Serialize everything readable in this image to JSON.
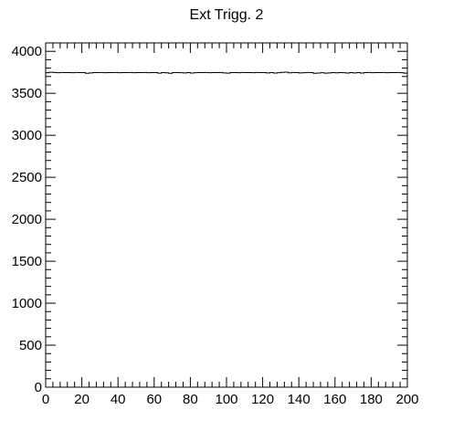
{
  "chart_data": {
    "type": "line",
    "title": "Ext Trigg. 2",
    "xlabel": "",
    "ylabel": "",
    "xlim": [
      0,
      200
    ],
    "ylim": [
      0,
      4100
    ],
    "x_ticks": [
      0,
      20,
      40,
      60,
      80,
      100,
      120,
      140,
      160,
      180,
      200
    ],
    "x_tick_labels": [
      "0",
      "20",
      "40",
      "60",
      "80",
      "100",
      "120",
      "140",
      "160",
      "180",
      "200"
    ],
    "y_ticks": [
      0,
      500,
      1000,
      1500,
      2000,
      2500,
      3000,
      3500,
      4000
    ],
    "y_tick_labels": [
      "0",
      "500",
      "1000",
      "1500",
      "2000",
      "2500",
      "3000",
      "3500",
      "4000"
    ],
    "grid": false,
    "legend": "none",
    "colors": {
      "line": "#000000",
      "axes": "#000000",
      "background": "#ffffff"
    },
    "series": [
      {
        "x": [
          0,
          2,
          4,
          6,
          8,
          10,
          12,
          14,
          16,
          18,
          20,
          22,
          24,
          26,
          28,
          30,
          32,
          34,
          36,
          38,
          40,
          42,
          44,
          46,
          48,
          50,
          52,
          54,
          56,
          58,
          60,
          62,
          64,
          66,
          68,
          70,
          72,
          74,
          76,
          78,
          80,
          82,
          84,
          86,
          88,
          90,
          92,
          94,
          96,
          98,
          100,
          102,
          104,
          106,
          108,
          110,
          112,
          114,
          116,
          118,
          120,
          122,
          124,
          126,
          128,
          130,
          132,
          134,
          136,
          138,
          140,
          142,
          144,
          146,
          148,
          150,
          152,
          154,
          156,
          158,
          160,
          162,
          164,
          166,
          168,
          170,
          172,
          174,
          176,
          178,
          180,
          182,
          184,
          186,
          188,
          190,
          192,
          194,
          196,
          198
        ],
        "values": [
          3745,
          3750,
          3748,
          3745,
          3748,
          3746,
          3747,
          3745,
          3748,
          3746,
          3747,
          3738,
          3743,
          3747,
          3746,
          3748,
          3745,
          3747,
          3746,
          3748,
          3745,
          3747,
          3746,
          3748,
          3745,
          3747,
          3746,
          3748,
          3745,
          3747,
          3746,
          3740,
          3746,
          3744,
          3738,
          3746,
          3747,
          3745,
          3742,
          3746,
          3741,
          3745,
          3747,
          3746,
          3748,
          3745,
          3747,
          3746,
          3748,
          3743,
          3740,
          3746,
          3747,
          3745,
          3748,
          3746,
          3747,
          3745,
          3748,
          3746,
          3747,
          3742,
          3746,
          3741,
          3745,
          3749,
          3752,
          3744,
          3748,
          3746,
          3742,
          3745,
          3748,
          3746,
          3739,
          3741,
          3745,
          3740,
          3743,
          3746,
          3744,
          3747,
          3745,
          3741,
          3746,
          3743,
          3747,
          3741,
          3746,
          3748,
          3745,
          3747,
          3746,
          3748,
          3745,
          3747,
          3746,
          3748,
          3745,
          3740
        ]
      }
    ]
  }
}
